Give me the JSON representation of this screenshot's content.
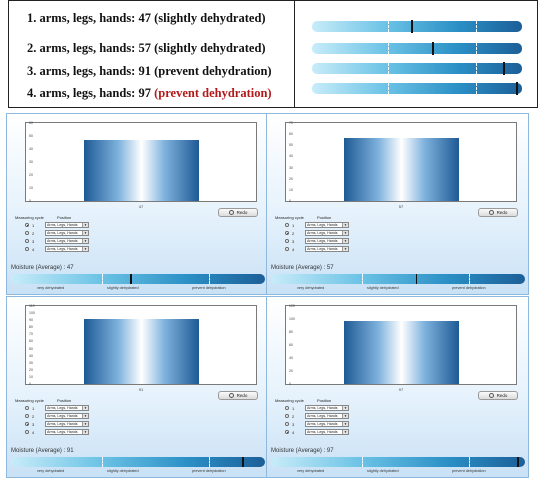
{
  "summary": {
    "lines": [
      {
        "prefix": "1. arms, legs, hands: 47 ",
        "status": "(slightly dehydrated)",
        "red": false
      },
      {
        "prefix": "2. arms, legs, hands: 57 ",
        "status": "(slightly dehydrated)",
        "red": false
      },
      {
        "prefix": "3. arms, legs, hands: 91 ",
        "status": "(prevent dehydration)",
        "red": false
      },
      {
        "prefix": "4. arms, legs, hands: 97 ",
        "status": "(prevent dehydration)",
        "red": true
      }
    ],
    "bar_values": [
      47,
      57,
      91,
      97
    ]
  },
  "panels": [
    {
      "ticks": [
        "60",
        "50",
        "40",
        "30",
        "20",
        "10",
        "0"
      ],
      "tick_values": [
        60,
        50,
        40,
        30,
        20,
        10,
        0
      ],
      "ymax": 60,
      "bar_value": 47,
      "x_label": "47",
      "redo_label": "Redo",
      "cycle_header": "Measuring cycle",
      "position_header": "Position",
      "cycles": [
        {
          "n": "1",
          "on": true
        },
        {
          "n": "2",
          "on": false
        },
        {
          "n": "3",
          "on": false
        },
        {
          "n": "4",
          "on": false
        }
      ],
      "position_value": "Arms, Legs, Hands",
      "moisture_label": "Moisture (Average) : 47",
      "moisture_value": 47,
      "zones": [
        "very dehydrated",
        "slightly dehydrated",
        "prevent dehydration"
      ]
    },
    {
      "ticks": [
        "70",
        "60",
        "50",
        "40",
        "30",
        "20",
        "10",
        "0"
      ],
      "tick_values": [
        70,
        60,
        50,
        40,
        30,
        20,
        10,
        0
      ],
      "ymax": 70,
      "bar_value": 57,
      "x_label": "57",
      "redo_label": "Redo",
      "cycle_header": "Measuring cycle",
      "position_header": "Position",
      "cycles": [
        {
          "n": "1",
          "on": false
        },
        {
          "n": "2",
          "on": true
        },
        {
          "n": "3",
          "on": false
        },
        {
          "n": "4",
          "on": false
        }
      ],
      "position_value": "Arms, Legs, Hands",
      "moisture_label": "Moisture (Average) : 57",
      "moisture_value": 57,
      "zones": [
        "very dehydrated",
        "slightly dehydrated",
        "prevent dehydration"
      ]
    },
    {
      "ticks": [
        "110",
        "100",
        "90",
        "80",
        "70",
        "60",
        "50",
        "40",
        "30",
        "20",
        "10",
        "0"
      ],
      "tick_values": [
        110,
        100,
        90,
        80,
        70,
        60,
        50,
        40,
        30,
        20,
        10,
        0
      ],
      "ymax": 110,
      "bar_value": 91,
      "x_label": "91",
      "redo_label": "Redo",
      "cycle_header": "Measuring cycle",
      "position_header": "Position",
      "cycles": [
        {
          "n": "1",
          "on": false
        },
        {
          "n": "2",
          "on": false
        },
        {
          "n": "3",
          "on": true
        },
        {
          "n": "4",
          "on": false
        }
      ],
      "position_value": "Arms, Legs, Hands",
      "moisture_label": "Moisture (Average) : 91",
      "moisture_value": 91,
      "zones": [
        "very dehydrated",
        "slightly dehydrated",
        "prevent dehydration"
      ]
    },
    {
      "ticks": [
        "120",
        "100",
        "80",
        "60",
        "40",
        "20",
        "0"
      ],
      "tick_values": [
        120,
        100,
        80,
        60,
        40,
        20,
        0
      ],
      "ymax": 120,
      "bar_value": 97,
      "x_label": "97",
      "redo_label": "Redo",
      "cycle_header": "Measuring cycle",
      "position_header": "Position",
      "cycles": [
        {
          "n": "1",
          "on": false
        },
        {
          "n": "2",
          "on": false
        },
        {
          "n": "3",
          "on": false
        },
        {
          "n": "4",
          "on": true
        }
      ],
      "position_value": "Arms, Legs, Hands",
      "moisture_label": "Moisture (Average) : 97",
      "moisture_value": 97,
      "zones": [
        "very dehydrated",
        "slightly dehydrated",
        "prevent dehydration"
      ]
    }
  ],
  "colors": {
    "accent_red": "#b11a1a",
    "bar_dark": "#1e5a95",
    "bar_light": "#ffffff"
  }
}
